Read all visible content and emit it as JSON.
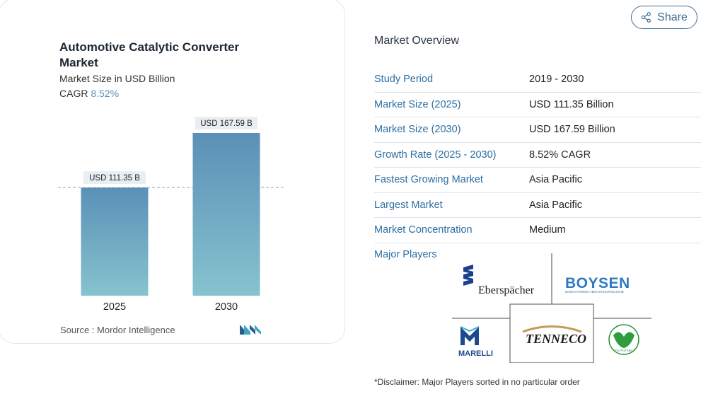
{
  "share": {
    "label": "Share",
    "icon": "share-icon"
  },
  "chart": {
    "title": "Automotive Catalytic Converter Market",
    "subtitle": "Market Size in USD Billion",
    "cagr_label": "CAGR",
    "cagr_value": "8.52%",
    "source_label": "Source :",
    "source_value": "Mordor Intelligence",
    "logo": "mordor-intelligence-logo"
  },
  "chart_data": {
    "type": "bar",
    "categories": [
      "2025",
      "2030"
    ],
    "values": [
      111.35,
      167.59
    ],
    "data_labels": [
      "USD 111.35 B",
      "USD 167.59 B"
    ],
    "title": "Automotive Catalytic Converter Market",
    "subtitle": "Market Size in USD Billion",
    "ylim": [
      0,
      167.59
    ],
    "reference_line": 111.35,
    "grid": false,
    "bar_color_top": "#5b90b6",
    "bar_color_bottom": "#86c3cf"
  },
  "overview": {
    "title": "Market Overview",
    "rows": [
      {
        "key": "Study Period",
        "value": "2019 - 2030"
      },
      {
        "key": "Market Size (2025)",
        "value": "USD 111.35 Billion"
      },
      {
        "key": "Market Size (2030)",
        "value": "USD 167.59 Billion"
      },
      {
        "key": "Growth Rate (2025 - 2030)",
        "value": "8.52% CAGR"
      },
      {
        "key": "Fastest Growing Market",
        "value": "Asia Pacific"
      },
      {
        "key": "Largest Market",
        "value": "Asia Pacific"
      },
      {
        "key": "Market Concentration",
        "value": "Medium"
      }
    ],
    "major_players_label": "Major Players"
  },
  "players": {
    "eberspacher": "Eberspächer",
    "boysen": "BOYSEN",
    "boysen_tag": "INNOVATIONEN ABGASTECHNOLOGIE",
    "marelli": "MARELLI",
    "tenneco": "TENNECO",
    "fiv": "FIV FUTABA"
  },
  "disclaimer": "*Disclaimer: Major Players sorted in no particular order",
  "colors": {
    "accent": "#2c6ea3",
    "bar": "#6a9fc0"
  }
}
